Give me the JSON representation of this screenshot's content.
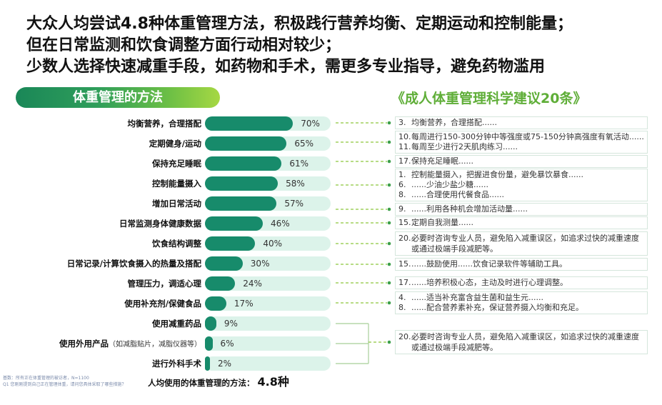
{
  "headline": [
    "大众人均尝试4.8种体重管理方法，积极践行营养均衡、定期运动和控制能量；",
    "但在日常监测和饮食调整方面行动相对较少；",
    "少数人选择快速减重手段，如药物和手术，需更多专业指导，避免药物滥用"
  ],
  "left_header": "体重管理的方法",
  "right_header": "《成人体重管理科学建议20条》",
  "chart_data": {
    "type": "bar",
    "orientation": "horizontal",
    "categories": [
      "均衡营养，合理搭配",
      "定期健身/运动",
      "保持充足睡眠",
      "控制能量摄入",
      "增加日常活动",
      "日常监测身体健康数据",
      "饮食结构调整",
      "日常记录/计算饮食摄入的热量及搭配",
      "管理压力，调适心理",
      "使用补充剂/保健食品",
      "使用减重药品",
      "使用外用产品",
      "进行外科手术"
    ],
    "category_notes": [
      "",
      "",
      "",
      "",
      "",
      "",
      "",
      "",
      "",
      "",
      "",
      "（如减脂贴片，减脂仪器等）",
      ""
    ],
    "values": [
      70,
      65,
      61,
      58,
      57,
      46,
      40,
      30,
      24,
      17,
      9,
      6,
      2
    ],
    "unit": "%",
    "xlim": [
      0,
      100
    ],
    "grid": false,
    "colors": {
      "bar": "#178b6b",
      "track": "#dcf3ea"
    }
  },
  "summary": {
    "label": "人均使用的体重管理的方法：",
    "value": "4.8种"
  },
  "footnote": [
    "基数：所有正在体重管理的被访者，N=1100",
    "Q1 您刚刚提到自己正在管理体重，请问您具体采取了哪些措施？"
  ],
  "recommendations": [
    {
      "items": [
        {
          "num": "3.",
          "text": "均衡营养，合理搭配......"
        }
      ]
    },
    {
      "items": [
        {
          "num": "10.",
          "text": "每周进行150-300分钟中等强度或75-150分钟高强度有氧活动......"
        },
        {
          "num": "11.",
          "text": "每周至少进行2天肌肉练习......"
        }
      ]
    },
    {
      "items": [
        {
          "num": "17.",
          "text": "保持充足睡眠......"
        }
      ]
    },
    {
      "items": [
        {
          "num": "1.",
          "text": "控制能量摄入，把握进食份量，避免暴饮暴食......"
        },
        {
          "num": "6.",
          "text": "......少油少盐少糖......"
        },
        {
          "num": "8.",
          "text": "......合理使用代餐食品......"
        }
      ]
    },
    {
      "items": [
        {
          "num": "9.",
          "text": "......利用各种机会增加活动量......"
        }
      ]
    },
    {
      "items": [
        {
          "num": "15.",
          "text": "定期自我测量......"
        }
      ]
    },
    {
      "items": [
        {
          "num": "20.",
          "text": "必要时咨询专业人员，避免陷入减重误区，如追求过快的减重速度或通过极端手段减肥等。"
        }
      ]
    },
    {
      "items": [
        {
          "num": "15.",
          "text": "......鼓励使用......饮食记录软件等辅助工具。"
        }
      ]
    },
    {
      "items": [
        {
          "num": "17.",
          "text": "......培养积极心态，主动及时进行心理调整。"
        }
      ]
    },
    {
      "items": [
        {
          "num": "4.",
          "text": "......适当补充富含益生菌和益生元......"
        },
        {
          "num": "8.",
          "text": "......配合营养素补充，保证营养摄入均衡和充足。"
        }
      ]
    },
    {
      "items": [
        {
          "num": "20.",
          "text": "必要时咨询专业人员，避免陷入减重误区，如追求过快的减重速度或通过极端手段减肥等。"
        }
      ]
    }
  ],
  "colors": {
    "accent": "#5fae38",
    "connector": "#8dc63f",
    "connector_dot": "#3c9f4a",
    "bracket": "#a8cf98"
  }
}
